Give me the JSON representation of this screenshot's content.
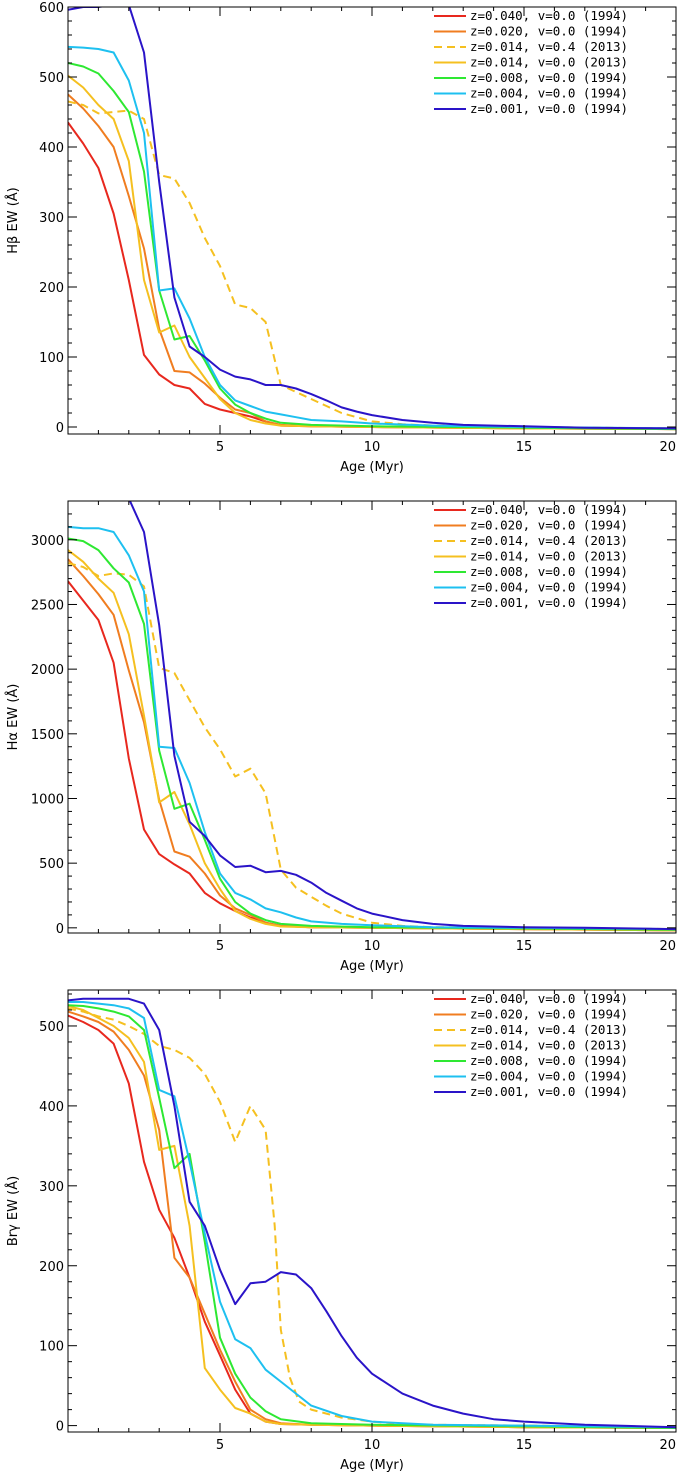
{
  "chart_data": [
    {
      "type": "line",
      "ylabel_parts": [
        "H",
        "β",
        " EW (Å)"
      ],
      "xlabel": "Age (Myr)",
      "xlim": [
        0,
        20
      ],
      "ylim": [
        -10,
        600
      ],
      "xticks": [
        5,
        10,
        15,
        20
      ],
      "yticks": [
        0,
        100,
        200,
        300,
        400,
        500,
        600
      ],
      "legend_position": "top-right",
      "series": [
        {
          "name": "z=0.040, v=0.0 (1994)",
          "color": "#e8281e",
          "dash": false,
          "x": [
            0,
            0.5,
            1,
            1.5,
            2,
            2.5,
            3,
            3.5,
            4,
            4.5,
            5,
            5.5,
            6,
            6.5,
            7,
            8,
            10,
            15,
            20
          ],
          "y": [
            435,
            405,
            370,
            305,
            210,
            103,
            75,
            60,
            55,
            33,
            25,
            20,
            15,
            8,
            2,
            1,
            0,
            -2,
            -3
          ]
        },
        {
          "name": "z=0.020, v=0.0 (1994)",
          "color": "#f07d20",
          "dash": false,
          "x": [
            0,
            0.5,
            1,
            1.5,
            2,
            2.5,
            3,
            3.5,
            4,
            4.5,
            5,
            5.5,
            6,
            6.5,
            7,
            8,
            10,
            15,
            20
          ],
          "y": [
            475,
            455,
            430,
            400,
            330,
            255,
            140,
            80,
            78,
            62,
            42,
            25,
            20,
            8,
            3,
            1,
            0,
            -2,
            -3
          ]
        },
        {
          "name": "z=0.014, v=0.4 (2013)",
          "color": "#f5c020",
          "dash": true,
          "x": [
            0,
            0.5,
            1,
            1.5,
            2,
            2.5,
            3,
            3.5,
            4,
            4.5,
            5,
            5.5,
            6,
            6.5,
            7,
            7.5,
            8,
            8.5,
            9,
            10,
            11,
            12,
            15,
            20
          ],
          "y": [
            465,
            460,
            448,
            450,
            452,
            440,
            360,
            355,
            320,
            270,
            230,
            175,
            170,
            150,
            60,
            50,
            40,
            30,
            20,
            8,
            4,
            2,
            0,
            -2
          ]
        },
        {
          "name": "z=0.014, v=0.0 (2013)",
          "color": "#f5c020",
          "dash": false,
          "x": [
            0,
            0.5,
            1,
            1.5,
            2,
            2.5,
            3,
            3.5,
            4,
            4.5,
            5,
            5.5,
            6,
            6.5,
            7,
            8,
            10,
            15,
            20
          ],
          "y": [
            502,
            485,
            460,
            440,
            380,
            210,
            135,
            145,
            100,
            70,
            40,
            20,
            10,
            5,
            2,
            1,
            0,
            -2,
            -3
          ]
        },
        {
          "name": "z=0.008, v=0.0 (1994)",
          "color": "#2ee832",
          "dash": false,
          "x": [
            0,
            0.5,
            1,
            1.5,
            2,
            2.5,
            3,
            3.5,
            4,
            4.5,
            5,
            5.5,
            6,
            6.5,
            7,
            8,
            10,
            15,
            20
          ],
          "y": [
            520,
            515,
            505,
            480,
            450,
            365,
            195,
            125,
            130,
            95,
            55,
            32,
            20,
            12,
            6,
            3,
            1,
            -1,
            -3
          ]
        },
        {
          "name": "z=0.004, v=0.0 (1994)",
          "color": "#1ec0f0",
          "dash": false,
          "x": [
            0,
            0.5,
            1,
            1.5,
            2,
            2.5,
            3,
            3.5,
            4,
            4.5,
            5,
            5.5,
            6,
            6.5,
            7,
            7.5,
            8,
            9,
            10,
            12,
            15,
            20
          ],
          "y": [
            543,
            542,
            540,
            535,
            495,
            420,
            195,
            198,
            155,
            100,
            60,
            38,
            30,
            22,
            18,
            14,
            10,
            8,
            5,
            2,
            0,
            -2
          ]
        },
        {
          "name": "z=0.001, v=0.0 (1994)",
          "color": "#2a14c8",
          "dash": false,
          "x": [
            0,
            0.5,
            1,
            1.5,
            2,
            2.5,
            3,
            3.5,
            4,
            4.5,
            5,
            5.5,
            6,
            6.5,
            7,
            7.5,
            8,
            8.5,
            9,
            9.5,
            10,
            11,
            12,
            13,
            15,
            17,
            20
          ],
          "y": [
            596,
            600,
            600,
            603,
            603,
            535,
            350,
            185,
            115,
            100,
            82,
            72,
            68,
            60,
            60,
            55,
            47,
            38,
            28,
            22,
            17,
            10,
            6,
            3,
            1,
            -1,
            -2
          ]
        }
      ]
    },
    {
      "type": "line",
      "ylabel_parts": [
        "H",
        "α",
        " EW (Å)"
      ],
      "xlabel": "Age (Myr)",
      "xlim": [
        0,
        20
      ],
      "ylim": [
        -40,
        3300
      ],
      "xticks": [
        5,
        10,
        15,
        20
      ],
      "yticks": [
        0,
        500,
        1000,
        1500,
        2000,
        2500,
        3000
      ],
      "legend_position": "top-right",
      "series": [
        {
          "name": "z=0.040, v=0.0 (1994)",
          "color": "#e8281e",
          "dash": false,
          "x": [
            0,
            0.5,
            1,
            1.5,
            2,
            2.5,
            3,
            3.5,
            4,
            4.5,
            5,
            5.5,
            6,
            6.5,
            7,
            8,
            10,
            15,
            20
          ],
          "y": [
            2680,
            2530,
            2380,
            2050,
            1310,
            760,
            570,
            490,
            420,
            270,
            190,
            130,
            80,
            40,
            15,
            5,
            0,
            -10,
            -20
          ]
        },
        {
          "name": "z=0.020, v=0.0 (1994)",
          "color": "#f07d20",
          "dash": false,
          "x": [
            0,
            0.5,
            1,
            1.5,
            2,
            2.5,
            3,
            3.5,
            4,
            4.5,
            5,
            5.5,
            6,
            6.5,
            7,
            8,
            10,
            15,
            20
          ],
          "y": [
            2850,
            2720,
            2580,
            2420,
            1990,
            1590,
            990,
            590,
            550,
            420,
            250,
            150,
            100,
            40,
            15,
            5,
            0,
            -10,
            -20
          ]
        },
        {
          "name": "z=0.014, v=0.4 (2013)",
          "color": "#f5c020",
          "dash": true,
          "x": [
            0,
            0.5,
            1,
            1.5,
            2,
            2.5,
            3,
            3.5,
            4,
            4.5,
            5,
            5.5,
            6,
            6.5,
            7,
            7.5,
            8,
            8.5,
            9,
            10,
            11,
            12,
            15,
            20
          ],
          "y": [
            2820,
            2790,
            2720,
            2740,
            2730,
            2640,
            2010,
            1970,
            1760,
            1550,
            1380,
            1170,
            1230,
            1040,
            450,
            310,
            240,
            170,
            110,
            40,
            15,
            5,
            0,
            -10
          ]
        },
        {
          "name": "z=0.014, v=0.0 (2013)",
          "color": "#f5c020",
          "dash": false,
          "x": [
            0,
            0.5,
            1,
            1.5,
            2,
            2.5,
            3,
            3.5,
            4,
            4.5,
            5,
            5.5,
            6,
            6.5,
            7,
            8,
            10,
            15,
            20
          ],
          "y": [
            2920,
            2830,
            2700,
            2590,
            2270,
            1640,
            970,
            1050,
            800,
            500,
            300,
            130,
            70,
            30,
            10,
            5,
            0,
            -10,
            -20
          ]
        },
        {
          "name": "z=0.008, v=0.0 (1994)",
          "color": "#2ee832",
          "dash": false,
          "x": [
            0,
            0.5,
            1,
            1.5,
            2,
            2.5,
            3,
            3.5,
            4,
            4.5,
            5,
            5.5,
            6,
            6.5,
            7,
            8,
            10,
            15,
            20
          ],
          "y": [
            3010,
            2990,
            2920,
            2780,
            2670,
            2350,
            1370,
            920,
            960,
            680,
            380,
            200,
            110,
            60,
            30,
            15,
            5,
            -5,
            -15
          ]
        },
        {
          "name": "z=0.004, v=0.0 (1994)",
          "color": "#1ec0f0",
          "dash": false,
          "x": [
            0,
            0.5,
            1,
            1.5,
            2,
            2.5,
            3,
            3.5,
            4,
            4.5,
            5,
            5.5,
            6,
            6.5,
            7,
            7.5,
            8,
            9,
            10,
            12,
            15,
            20
          ],
          "y": [
            3100,
            3090,
            3090,
            3060,
            2880,
            2600,
            1400,
            1390,
            1120,
            740,
            420,
            270,
            220,
            150,
            120,
            80,
            50,
            30,
            20,
            5,
            0,
            -10
          ]
        },
        {
          "name": "z=0.001, v=0.0 (1994)",
          "color": "#2a14c8",
          "dash": false,
          "x": [
            0,
            0.5,
            1,
            1.5,
            2,
            2.5,
            3,
            3.5,
            4,
            4.5,
            5,
            5.5,
            6,
            6.5,
            7,
            7.5,
            8,
            8.5,
            9,
            9.5,
            10,
            11,
            12,
            13,
            15,
            17,
            20
          ],
          "y": [
            3310,
            3310,
            3310,
            3320,
            3320,
            3060,
            2340,
            1330,
            820,
            710,
            560,
            470,
            480,
            430,
            440,
            410,
            350,
            270,
            210,
            150,
            110,
            60,
            30,
            15,
            5,
            0,
            -10
          ]
        }
      ]
    },
    {
      "type": "line",
      "ylabel_parts": [
        "Br",
        "γ",
        " EW (Å)"
      ],
      "xlabel": "Age (Myr)",
      "xlim": [
        0,
        20
      ],
      "ylim": [
        -8,
        545
      ],
      "xticks": [
        5,
        10,
        15,
        20
      ],
      "yticks": [
        0,
        100,
        200,
        300,
        400,
        500
      ],
      "legend_position": "top-right",
      "series": [
        {
          "name": "z=0.040, v=0.0 (1994)",
          "color": "#e8281e",
          "dash": false,
          "x": [
            0,
            0.5,
            1,
            1.5,
            2,
            2.5,
            3,
            3.5,
            4,
            4.5,
            5,
            5.5,
            6,
            6.5,
            7,
            8,
            10,
            15,
            20
          ],
          "y": [
            513,
            505,
            495,
            478,
            428,
            330,
            270,
            235,
            185,
            130,
            88,
            45,
            15,
            5,
            2,
            1,
            0,
            -2,
            -3
          ]
        },
        {
          "name": "z=0.020, v=0.0 (1994)",
          "color": "#f07d20",
          "dash": false,
          "x": [
            0,
            0.5,
            1,
            1.5,
            2,
            2.5,
            3,
            3.5,
            4,
            4.5,
            5,
            5.5,
            6,
            6.5,
            7,
            8,
            10,
            15,
            20
          ],
          "y": [
            518,
            512,
            505,
            493,
            470,
            438,
            370,
            210,
            185,
            140,
            95,
            55,
            20,
            8,
            3,
            1,
            0,
            -2,
            -3
          ]
        },
        {
          "name": "z=0.014, v=0.4 (2013)",
          "color": "#f5c020",
          "dash": true,
          "x": [
            0,
            0.5,
            1,
            1.5,
            2,
            2.5,
            3,
            3.5,
            4,
            4.5,
            5,
            5.5,
            6,
            6.5,
            6.8,
            7,
            7.3,
            7.6,
            8,
            8.5,
            9,
            10,
            11,
            12,
            15,
            20
          ],
          "y": [
            522,
            518,
            512,
            508,
            500,
            490,
            475,
            470,
            460,
            440,
            405,
            355,
            400,
            370,
            250,
            120,
            60,
            30,
            20,
            15,
            10,
            5,
            2,
            1,
            0,
            -2
          ]
        },
        {
          "name": "z=0.014, v=0.0 (2013)",
          "color": "#f5c020",
          "dash": false,
          "x": [
            0,
            0.5,
            1,
            1.5,
            2,
            2.5,
            3,
            3.5,
            4,
            4.5,
            5,
            5.5,
            6,
            6.5,
            7,
            8,
            10,
            15,
            20
          ],
          "y": [
            525,
            520,
            510,
            500,
            485,
            455,
            345,
            350,
            250,
            72,
            45,
            22,
            15,
            5,
            2,
            1,
            0,
            -2,
            -3
          ]
        },
        {
          "name": "z=0.008, v=0.0 (1994)",
          "color": "#2ee832",
          "dash": false,
          "x": [
            0,
            0.5,
            1,
            1.5,
            2,
            2.5,
            3,
            3.5,
            4,
            4.5,
            5,
            5.5,
            6,
            6.5,
            7,
            8,
            10,
            15,
            20
          ],
          "y": [
            526,
            525,
            522,
            518,
            512,
            495,
            410,
            322,
            340,
            230,
            110,
            65,
            35,
            18,
            8,
            3,
            1,
            -1,
            -3
          ]
        },
        {
          "name": "z=0.004, v=0.0 (1994)",
          "color": "#1ec0f0",
          "dash": false,
          "x": [
            0,
            0.5,
            1,
            1.5,
            2,
            2.5,
            3,
            3.5,
            4,
            4.5,
            5,
            5.5,
            6,
            6.5,
            7,
            7.5,
            8,
            9,
            10,
            12,
            15,
            20
          ],
          "y": [
            530,
            530,
            528,
            526,
            522,
            510,
            420,
            412,
            330,
            240,
            155,
            108,
            97,
            70,
            55,
            40,
            25,
            12,
            5,
            1,
            0,
            -2
          ]
        },
        {
          "name": "z=0.001, v=0.0 (1994)",
          "color": "#2a14c8",
          "dash": false,
          "x": [
            0,
            0.5,
            1,
            1.5,
            2,
            2.5,
            3,
            3.5,
            4,
            4.5,
            5,
            5.5,
            6,
            6.5,
            7,
            7.5,
            8,
            8.5,
            9,
            9.5,
            10,
            11,
            12,
            13,
            14,
            15,
            17,
            20
          ],
          "y": [
            532,
            534,
            534,
            534,
            534,
            528,
            495,
            400,
            280,
            250,
            195,
            152,
            178,
            180,
            192,
            189,
            172,
            143,
            112,
            85,
            65,
            40,
            25,
            15,
            8,
            5,
            1,
            -2
          ]
        }
      ]
    }
  ]
}
